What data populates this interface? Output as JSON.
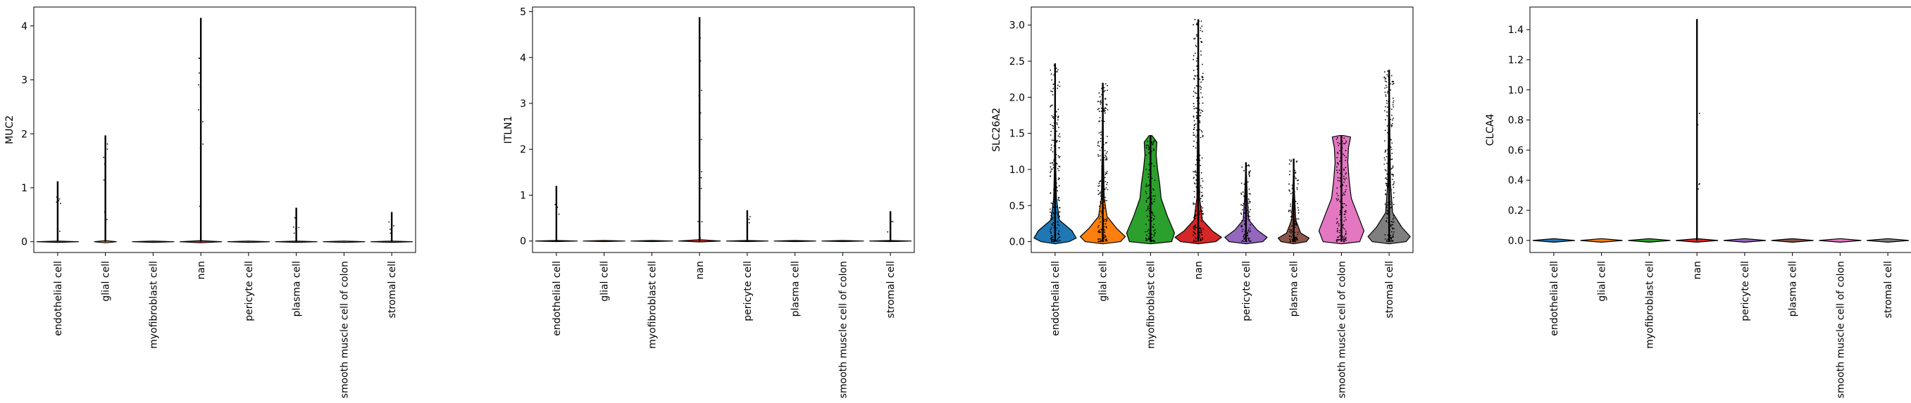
{
  "chart_data": [
    {
      "type": "violin",
      "ylabel": "MUC2",
      "ylim": [
        -0.2,
        4.35
      ],
      "yticks": [
        "0",
        "1",
        "2",
        "3",
        "4"
      ],
      "categories": [
        "endothelial cell",
        "glial cell",
        "myofibroblast cell",
        "nan",
        "pericyte cell",
        "plasma cell",
        "smooth muscle cell of colon",
        "stromal cell"
      ],
      "max_values": [
        1.12,
        1.97,
        0.0,
        4.15,
        0.0,
        0.63,
        0.0,
        0.55
      ],
      "colors": [
        "#1f77b4",
        "#ff7f0e",
        "#2ca02c",
        "#d62728",
        "#9467bd",
        "#8c564b",
        "#e377c2",
        "#7f7f7f"
      ]
    },
    {
      "type": "violin",
      "ylabel": "ITLN1",
      "ylim": [
        -0.25,
        5.1
      ],
      "yticks": [
        "0",
        "1",
        "2",
        "3",
        "4",
        "5"
      ],
      "categories": [
        "endothelial cell",
        "glial cell",
        "myofibroblast cell",
        "nan",
        "pericyte cell",
        "plasma cell",
        "smooth muscle cell of colon",
        "stromal cell"
      ],
      "max_values": [
        1.2,
        0.0,
        0.0,
        4.88,
        0.67,
        0.0,
        0.0,
        0.65
      ],
      "colors": [
        "#1f77b4",
        "#ff7f0e",
        "#2ca02c",
        "#d62728",
        "#9467bd",
        "#8c564b",
        "#e377c2",
        "#7f7f7f"
      ]
    },
    {
      "type": "violin",
      "ylabel": "SLC26A2",
      "ylim": [
        -0.15,
        3.25
      ],
      "yticks": [
        "0.0",
        "0.5",
        "1.0",
        "1.5",
        "2.0",
        "2.5",
        "3.0"
      ],
      "categories": [
        "endothelial cell",
        "glial cell",
        "myofibroblast cell",
        "nan",
        "pericyte cell",
        "plasma cell",
        "smooth muscle cell of colon",
        "stromal cell"
      ],
      "max_values": [
        2.47,
        2.2,
        1.47,
        3.08,
        1.1,
        1.15,
        1.47,
        2.38
      ],
      "colors": [
        "#1f77b4",
        "#ff7f0e",
        "#2ca02c",
        "#d62728",
        "#9467bd",
        "#8c564b",
        "#e377c2",
        "#7f7f7f"
      ]
    },
    {
      "type": "violin",
      "ylabel": "CLCA4",
      "ylim": [
        -0.08,
        1.55
      ],
      "yticks": [
        "0.0",
        "0.2",
        "0.4",
        "0.6",
        "0.8",
        "1.0",
        "1.2",
        "1.4"
      ],
      "categories": [
        "endothelial cell",
        "glial cell",
        "myofibroblast cell",
        "nan",
        "pericyte cell",
        "plasma cell",
        "smooth muscle cell of colon",
        "stromal cell"
      ],
      "max_values": [
        0.0,
        0.0,
        0.0,
        1.47,
        0.0,
        0.0,
        0.0,
        0.0
      ],
      "colors": [
        "#1f77b4",
        "#ff7f0e",
        "#2ca02c",
        "#d62728",
        "#9467bd",
        "#8c564b",
        "#e377c2",
        "#7f7f7f"
      ]
    }
  ]
}
